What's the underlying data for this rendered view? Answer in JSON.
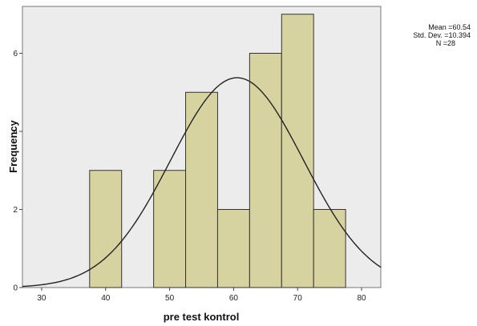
{
  "chart_data": {
    "type": "histogram",
    "xlabel": "pre test kontrol",
    "ylabel": "Frequency",
    "xlim": [
      27,
      83
    ],
    "ylim": [
      0,
      7.2
    ],
    "x_ticks": [
      30,
      40,
      50,
      60,
      70,
      80
    ],
    "y_ticks": [
      0,
      2,
      4,
      6
    ],
    "bin_width": 5,
    "bins": [
      {
        "start": 37.5,
        "end": 42.5,
        "count": 3
      },
      {
        "start": 42.5,
        "end": 47.5,
        "count": 0
      },
      {
        "start": 47.5,
        "end": 52.5,
        "count": 3
      },
      {
        "start": 52.5,
        "end": 57.5,
        "count": 5
      },
      {
        "start": 57.5,
        "end": 62.5,
        "count": 2
      },
      {
        "start": 62.5,
        "end": 67.5,
        "count": 6
      },
      {
        "start": 67.5,
        "end": 72.5,
        "count": 7
      },
      {
        "start": 72.5,
        "end": 77.5,
        "count": 2
      }
    ],
    "normal_curve": {
      "mean": 60.54,
      "sd": 10.394,
      "n": 28
    },
    "stats_text": [
      "Mean =60.54",
      "Std. Dev. =10.394",
      "N =28"
    ],
    "colors": {
      "plot_background": "#ececec",
      "bar_fill": "#d6d3a0",
      "bar_stroke": "#333333",
      "curve": "#222222"
    }
  }
}
